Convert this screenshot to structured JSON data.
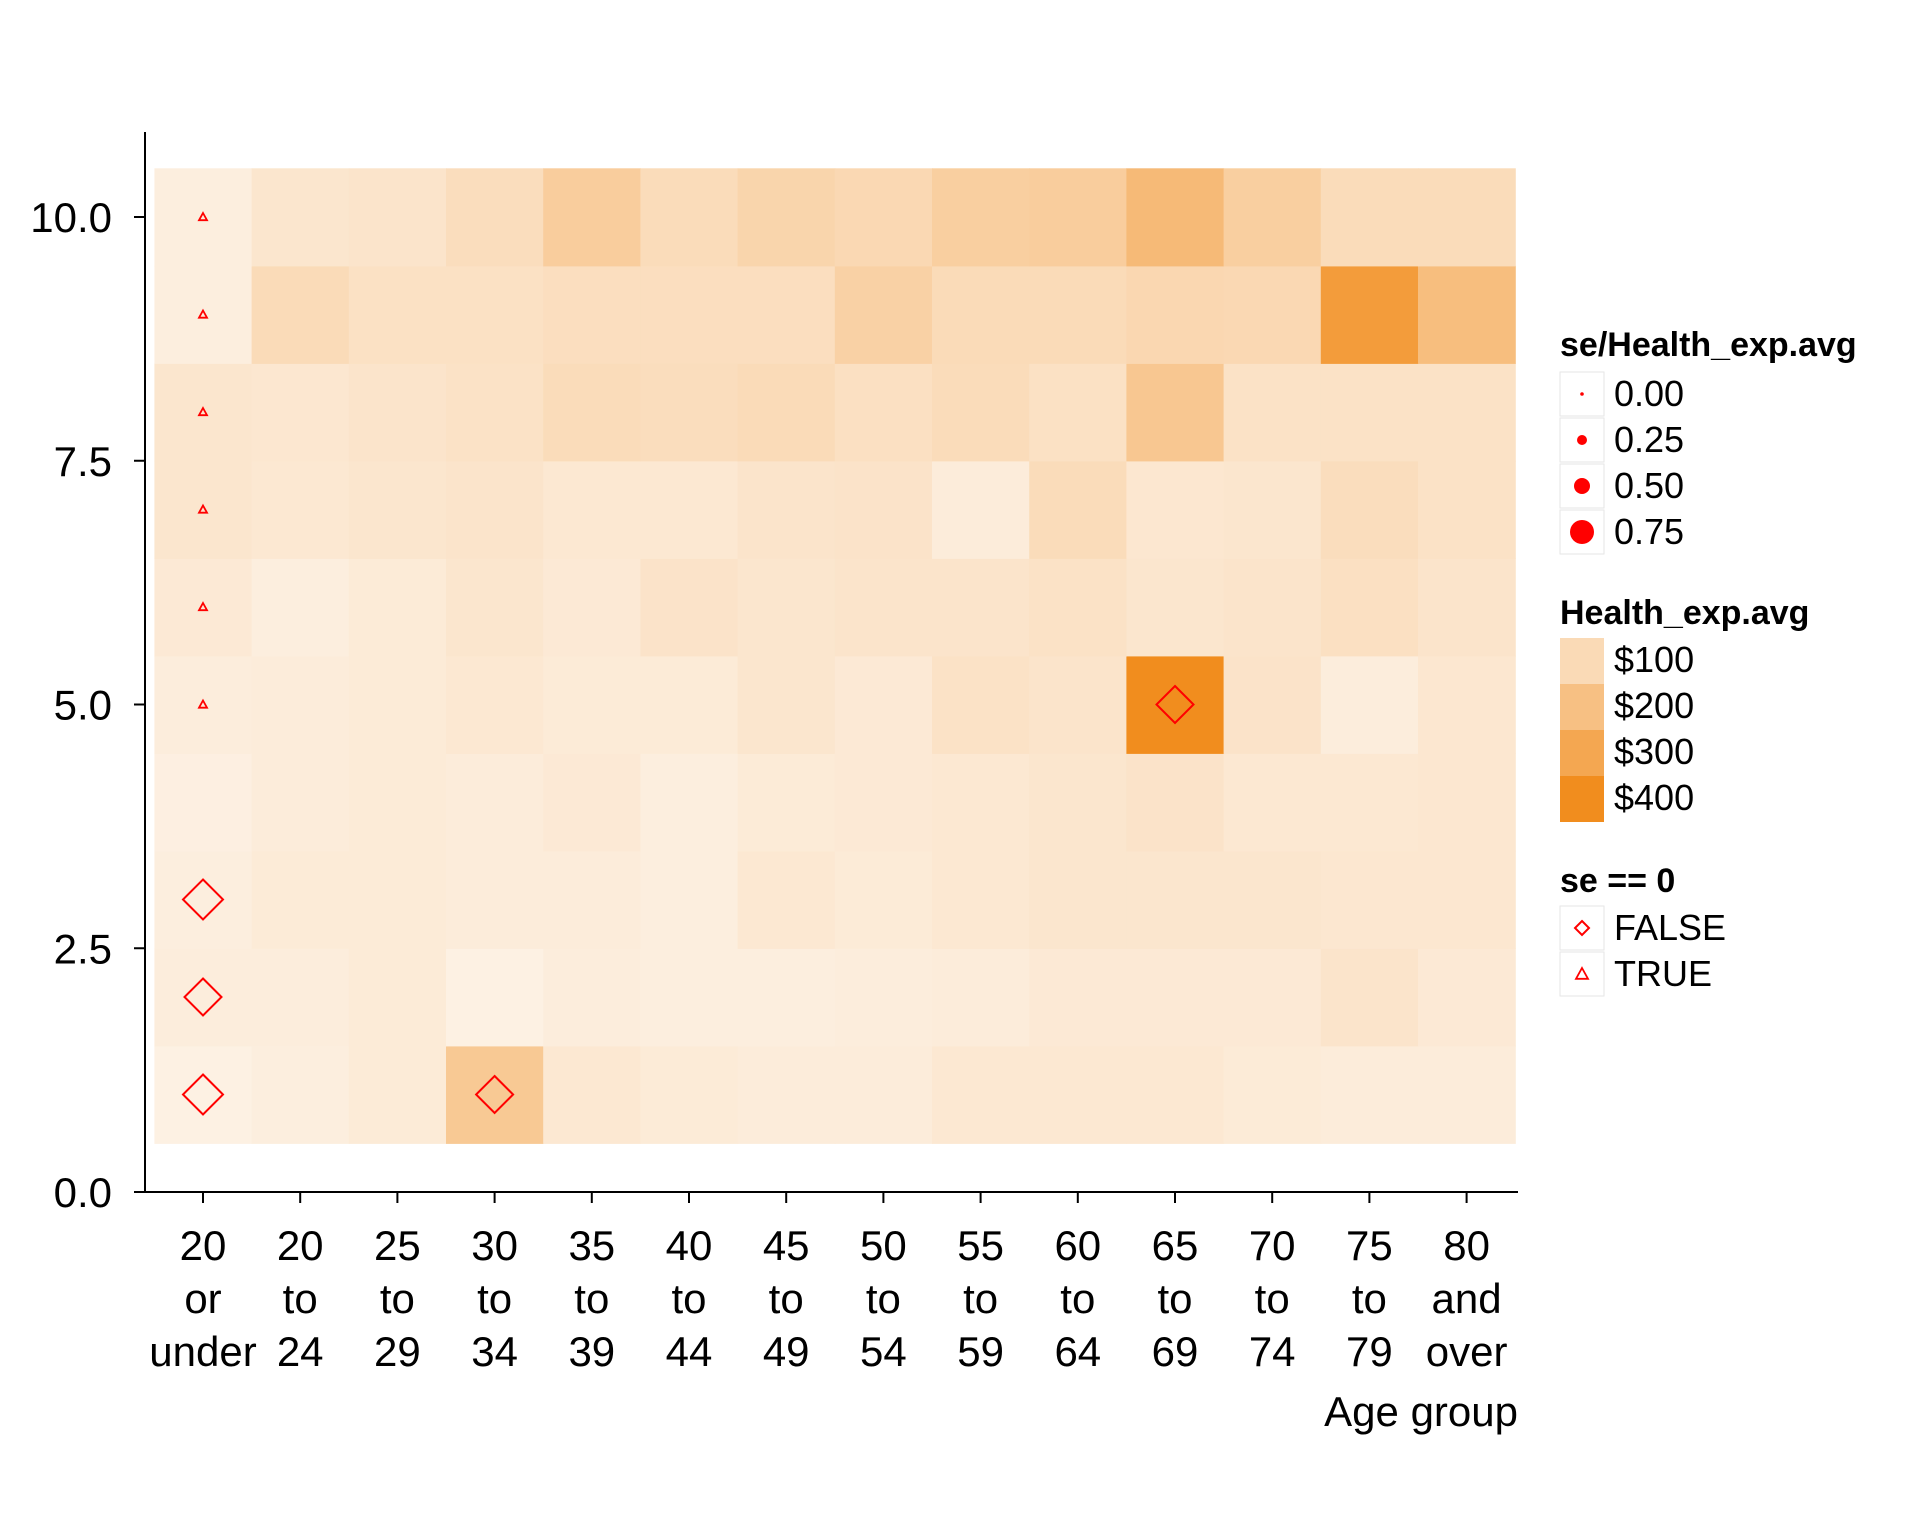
{
  "chart_data": {
    "type": "heatmap",
    "title": "",
    "xlabel": "Age group",
    "ylabel": "",
    "ylim": [
      0,
      11
    ],
    "y_ticks": [
      "0.0",
      "2.5",
      "5.0",
      "7.5",
      "10.0"
    ],
    "y_tick_values": [
      0,
      2.5,
      5,
      7.5,
      10
    ],
    "categories": [
      [
        "20",
        "or",
        "under"
      ],
      [
        "20",
        "to",
        "24"
      ],
      [
        "25",
        "to",
        "29"
      ],
      [
        "30",
        "to",
        "34"
      ],
      [
        "35",
        "to",
        "39"
      ],
      [
        "40",
        "to",
        "44"
      ],
      [
        "45",
        "to",
        "49"
      ],
      [
        "50",
        "to",
        "54"
      ],
      [
        "55",
        "to",
        "59"
      ],
      [
        "60",
        "to",
        "64"
      ],
      [
        "65",
        "to",
        "69"
      ],
      [
        "70",
        "to",
        "74"
      ],
      [
        "75",
        "to",
        "79"
      ],
      [
        "80",
        "and",
        "over"
      ]
    ],
    "y_levels": [
      1,
      2,
      3,
      4,
      5,
      6,
      7,
      8,
      9,
      10
    ],
    "fill_values_by_row": [
      [
        10,
        20,
        35,
        175,
        45,
        35,
        30,
        30,
        45,
        45,
        45,
        35,
        30,
        30
      ],
      [
        25,
        25,
        35,
        10,
        25,
        20,
        20,
        25,
        30,
        40,
        40,
        40,
        60,
        40
      ],
      [
        20,
        35,
        35,
        30,
        30,
        20,
        45,
        35,
        45,
        55,
        55,
        55,
        50,
        50
      ],
      [
        15,
        30,
        35,
        30,
        40,
        20,
        35,
        40,
        45,
        55,
        65,
        45,
        45,
        50
      ],
      [
        25,
        30,
        35,
        45,
        35,
        35,
        55,
        40,
        70,
        60,
        420,
        65,
        25,
        50
      ],
      [
        40,
        20,
        35,
        55,
        40,
        65,
        55,
        60,
        60,
        70,
        55,
        60,
        80,
        60
      ],
      [
        55,
        45,
        55,
        60,
        45,
        45,
        60,
        65,
        30,
        95,
        50,
        55,
        90,
        70
      ],
      [
        55,
        50,
        60,
        70,
        95,
        90,
        100,
        80,
        95,
        75,
        180,
        70,
        70,
        70
      ],
      [
        20,
        100,
        75,
        75,
        85,
        85,
        85,
        140,
        100,
        100,
        115,
        110,
        360,
        220
      ],
      [
        20,
        55,
        60,
        90,
        155,
        95,
        125,
        110,
        150,
        155,
        235,
        150,
        95,
        95
      ]
    ],
    "points": [
      {
        "x": 0,
        "y": 10,
        "se_zero": "TRUE",
        "se_ratio": 0.0
      },
      {
        "x": 0,
        "y": 9,
        "se_zero": "TRUE",
        "se_ratio": 0.0
      },
      {
        "x": 0,
        "y": 8,
        "se_zero": "TRUE",
        "se_ratio": 0.0
      },
      {
        "x": 0,
        "y": 7,
        "se_zero": "TRUE",
        "se_ratio": 0.0
      },
      {
        "x": 0,
        "y": 6,
        "se_zero": "TRUE",
        "se_ratio": 0.0
      },
      {
        "x": 0,
        "y": 5,
        "se_zero": "TRUE",
        "se_ratio": 0.0
      },
      {
        "x": 0,
        "y": 3,
        "se_zero": "FALSE",
        "se_ratio": 1.0
      },
      {
        "x": 0,
        "y": 2,
        "se_zero": "FALSE",
        "se_ratio": 0.85
      },
      {
        "x": 0,
        "y": 1,
        "se_zero": "FALSE",
        "se_ratio": 1.0
      },
      {
        "x": 3,
        "y": 1,
        "se_zero": "FALSE",
        "se_ratio": 0.85
      },
      {
        "x": 10,
        "y": 5,
        "se_zero": "FALSE",
        "se_ratio": 0.85
      }
    ],
    "legends": {
      "size": {
        "title": "se/Health_exp.avg",
        "labels": [
          "0.00",
          "0.25",
          "0.50",
          "0.75"
        ],
        "values": [
          0.0,
          0.25,
          0.5,
          0.75
        ]
      },
      "fill": {
        "title": "Health_exp.avg",
        "labels": [
          "$100",
          "$200",
          "$300",
          "$400"
        ],
        "values": [
          100,
          200,
          300,
          400
        ]
      },
      "shape": {
        "title": "se == 0",
        "labels": [
          "FALSE",
          "TRUE"
        ],
        "shapes": [
          "diamond",
          "triangle"
        ]
      },
      "placement": "right"
    },
    "colors": {
      "fill_low": "#fdf3e8",
      "fill_high": "#f18d1e",
      "marker": "#ff0000"
    },
    "grid": false
  }
}
